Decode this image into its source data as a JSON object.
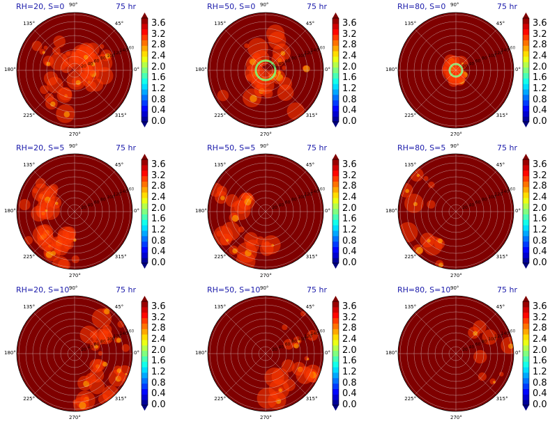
{
  "chart_data": {
    "type": "heatmap",
    "projection": "polar",
    "time_label": "75 hr",
    "angular_ticks": [
      "0°",
      "45°",
      "90°",
      "135°",
      "180°",
      "225°",
      "270°",
      "315°"
    ],
    "radial_ticks": [
      20,
      40,
      60,
      80,
      100,
      120,
      140,
      160
    ],
    "colorbar": {
      "ticks": [
        "0.0",
        "0.4",
        "0.8",
        "1.2",
        "1.6",
        "2.0",
        "2.4",
        "2.8",
        "3.2",
        "3.6"
      ],
      "range": [
        0.0,
        3.8
      ],
      "extend": "both",
      "colormap": "jet"
    },
    "panels": [
      {
        "title": "RH=20, S=0",
        "rh": 20,
        "shear": 0
      },
      {
        "title": "RH=50, S=0",
        "rh": 50,
        "shear": 0
      },
      {
        "title": "RH=80, S=0",
        "rh": 80,
        "shear": 0
      },
      {
        "title": "RH=20, S=5",
        "rh": 20,
        "shear": 5
      },
      {
        "title": "RH=50, S=5",
        "rh": 50,
        "shear": 5
      },
      {
        "title": "RH=80, S=5",
        "rh": 80,
        "shear": 5
      },
      {
        "title": "RH=20, S=10",
        "rh": 20,
        "shear": 10
      },
      {
        "title": "RH=50, S=10",
        "rh": 50,
        "shear": 10
      },
      {
        "title": "RH=80, S=10",
        "rh": 80,
        "shear": 10
      }
    ]
  },
  "colors": {
    "background_field": "#7f0000",
    "title_text": "#1a1aaa",
    "grid_lines": "#dddddd"
  }
}
